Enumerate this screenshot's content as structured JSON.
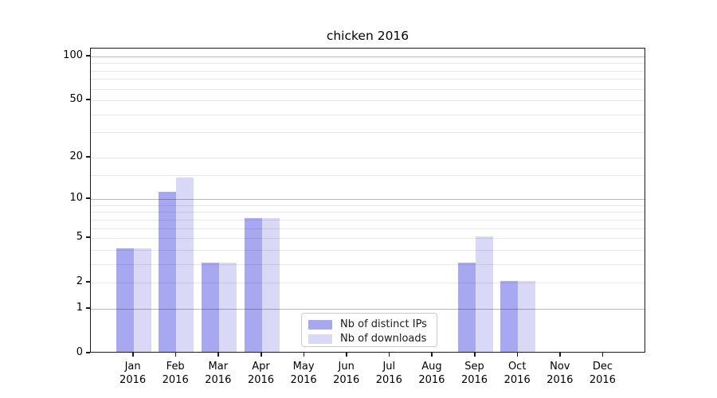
{
  "chart_data": {
    "type": "bar",
    "title": "chicken 2016",
    "categories": [
      "Jan",
      "Feb",
      "Mar",
      "Apr",
      "May",
      "Jun",
      "Jul",
      "Aug",
      "Sep",
      "Oct",
      "Nov",
      "Dec"
    ],
    "x_year_label": "2016",
    "series": [
      {
        "name": "Nb of distinct IPs",
        "color": "#a8a8f0",
        "values": [
          4,
          11,
          3,
          7,
          0,
          0,
          0,
          0,
          3,
          2,
          0,
          0
        ]
      },
      {
        "name": "Nb of downloads",
        "color": "#d9d9f7",
        "values": [
          4,
          14,
          3,
          7,
          0,
          0,
          0,
          0,
          5,
          2,
          0,
          0
        ]
      }
    ],
    "yscale": "log1p",
    "ylim": [
      0,
      113
    ],
    "yticks": [
      0,
      1,
      2,
      5,
      10,
      20,
      50,
      100
    ],
    "major_gridlines": [
      1,
      10,
      100
    ],
    "minor_gridlines": [
      2,
      3,
      4,
      5,
      6,
      7,
      8,
      9,
      15,
      20,
      30,
      40,
      50,
      60,
      70,
      80,
      90
    ],
    "legend_position": "lower center",
    "grid": true
  }
}
